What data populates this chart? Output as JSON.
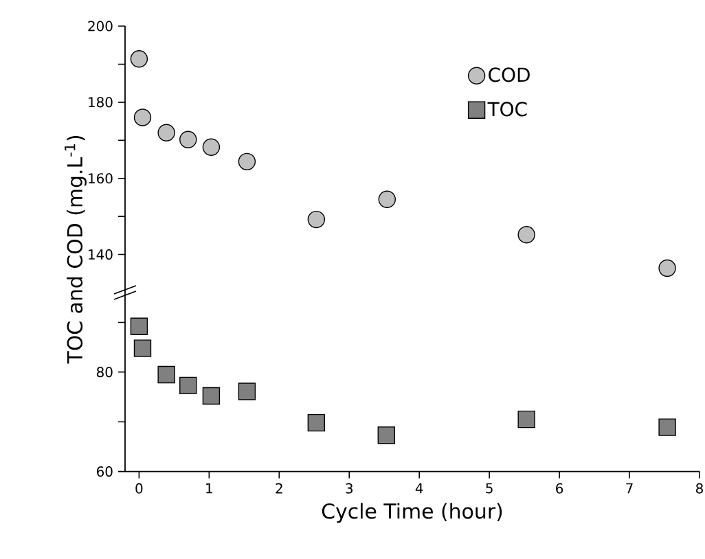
{
  "chart_data": [
    {
      "type": "scatter",
      "tick_labels": "y",
      "xlim": [
        -0.2,
        8
      ],
      "ylim": [
        130,
        200
      ],
      "yticks": [
        140,
        {
          "value": 150,
          "label": null
        },
        160,
        {
          "value": 170,
          "label": null
        },
        180,
        {
          "value": 190,
          "label": null
        },
        200
      ],
      "marker": "circle",
      "legend": "top right",
      "grid": false,
      "series": [
        {
          "name": "COD",
          "color": "#c0c0c0",
          "x": [
            0,
            0.05,
            0.39,
            0.7,
            1.03,
            1.54,
            2.53,
            3.54,
            5.53,
            7.54
          ],
          "values": [
            191.4,
            176,
            172,
            170.2,
            168.2,
            164.4,
            149.2,
            154.5,
            145.2,
            136.4
          ]
        }
      ]
    },
    {
      "type": "scatter",
      "xlabel": "Cycle Time (hour)",
      "ylabel": "TOC and COD (mg.L$^{-1}$)",
      "xlim": [
        -0.2,
        8
      ],
      "ylim": [
        60,
        96
      ],
      "xticks": [
        0,
        1,
        2,
        3,
        4,
        5,
        6,
        7,
        8
      ],
      "yticks": [
        60,
        {
          "value": 70,
          "label": null
        },
        80,
        {
          "value": 90,
          "label": null
        }
      ],
      "marker": "square",
      "legend": "top right",
      "grid": false,
      "series": [
        {
          "name": "TOC",
          "color": "#808080",
          "x": [
            0,
            0.05,
            0.39,
            0.7,
            1.03,
            1.54,
            2.53,
            3.53,
            5.53,
            7.54
          ],
          "values": [
            89.2,
            84.8,
            79.5,
            77.3,
            75.2,
            76.1,
            69.8,
            67.3,
            70.5,
            68.9
          ]
        }
      ]
    }
  ]
}
